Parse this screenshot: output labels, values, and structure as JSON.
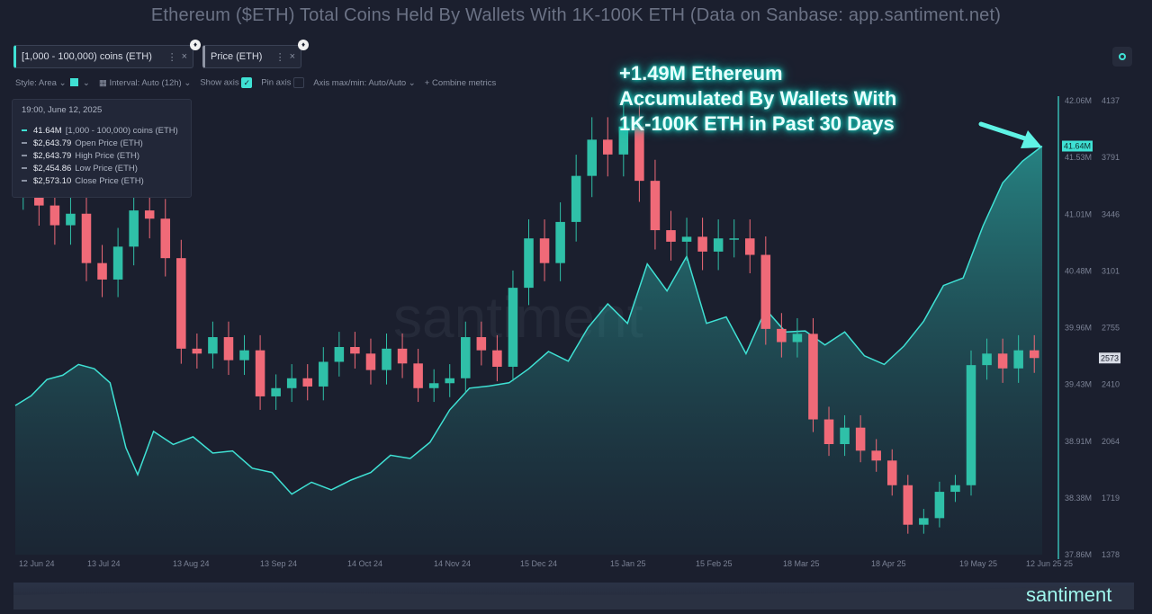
{
  "title": "Ethereum ($ETH) Total Coins Held By Wallets With 1K-100K ETH (Data on Sanbase: app.santiment.net)",
  "tabs": [
    {
      "label": "[1,000 - 100,000) coins (ETH)",
      "menu_icon": "more-dots-icon",
      "close_icon": "close-icon"
    },
    {
      "label": "Price (ETH)",
      "menu_icon": "more-dots-icon",
      "close_icon": "close-icon"
    }
  ],
  "settings": {
    "style": "Style: Area",
    "interval": "Interval: Auto (12h)",
    "show_axis": "Show axis",
    "pin_axis": "Pin axis",
    "axis_maxmin": "Axis max/min: Auto/Auto",
    "combine": "Combine metrics"
  },
  "tooltip": {
    "date": "19:00, June 12, 2025",
    "rows": [
      {
        "value": "41.64M",
        "label": "[1,000 - 100,000) coins (ETH)"
      },
      {
        "value": "$2,643.79",
        "label": "Open Price (ETH)"
      },
      {
        "value": "$2,643.79",
        "label": "High Price (ETH)"
      },
      {
        "value": "$2,454.86",
        "label": "Low Price (ETH)"
      },
      {
        "value": "$2,573.10",
        "label": "Close Price (ETH)"
      }
    ]
  },
  "annotation": [
    "+1.49M Ethereum",
    "Accumulated By Wallets With",
    "1K-100K ETH in Past 30 Days"
  ],
  "watermark": "santiment",
  "colors": {
    "holdings": "#3fe1d4",
    "up": "#2fc0a8",
    "down": "#f06a78",
    "background": "#1b1f2e"
  },
  "chart_data": {
    "type": "area",
    "x_labels": [
      "12 Jun 24",
      "13 Jul 24",
      "13 Aug 24",
      "13 Sep 24",
      "14 Oct 24",
      "14 Nov 24",
      "15 Dec 24",
      "15 Jan 25",
      "15 Feb 25",
      "18 Mar 25",
      "18 Apr 25",
      "19 May 25",
      "12 Jun 25",
      "25"
    ],
    "holdings_axis_ticks": [
      "42.06M",
      "41.53M",
      "41.01M",
      "40.48M",
      "39.96M",
      "39.43M",
      "38.91M",
      "38.38M",
      "37.86M"
    ],
    "price_axis_ticks": [
      "4137",
      "3791",
      "3446",
      "3101",
      "2755",
      "2410",
      "2064",
      "1719",
      "1378"
    ],
    "holdings_last_label": "41.64M",
    "price_last_label": "2573",
    "series": [
      {
        "name": "[1,000 - 100,000) coins (ETH)",
        "style": "area",
        "unit": "ETH (millions)",
        "points": [
          [
            0,
            39.24
          ],
          [
            8,
            39.33
          ],
          [
            16,
            39.48
          ],
          [
            24,
            39.52
          ],
          [
            32,
            39.62
          ],
          [
            40,
            39.58
          ],
          [
            48,
            39.45
          ],
          [
            56,
            38.85
          ],
          [
            62,
            38.6
          ],
          [
            70,
            39.0
          ],
          [
            80,
            38.88
          ],
          [
            90,
            38.95
          ],
          [
            100,
            38.8
          ],
          [
            110,
            38.82
          ],
          [
            120,
            38.66
          ],
          [
            130,
            38.62
          ],
          [
            140,
            38.42
          ],
          [
            150,
            38.53
          ],
          [
            160,
            38.46
          ],
          [
            170,
            38.55
          ],
          [
            180,
            38.62
          ],
          [
            190,
            38.78
          ],
          [
            200,
            38.75
          ],
          [
            210,
            38.9
          ],
          [
            220,
            39.2
          ],
          [
            230,
            39.4
          ],
          [
            240,
            39.42
          ],
          [
            250,
            39.45
          ],
          [
            260,
            39.58
          ],
          [
            270,
            39.74
          ],
          [
            280,
            39.65
          ],
          [
            290,
            39.96
          ],
          [
            300,
            40.18
          ],
          [
            310,
            40.0
          ],
          [
            320,
            40.55
          ],
          [
            330,
            40.3
          ],
          [
            340,
            40.62
          ],
          [
            350,
            40.0
          ],
          [
            360,
            40.06
          ],
          [
            370,
            39.72
          ],
          [
            380,
            40.13
          ],
          [
            390,
            39.92
          ],
          [
            400,
            39.93
          ],
          [
            410,
            39.8
          ],
          [
            420,
            39.92
          ],
          [
            430,
            39.7
          ],
          [
            440,
            39.62
          ],
          [
            450,
            39.79
          ],
          [
            460,
            40.02
          ],
          [
            470,
            40.35
          ],
          [
            480,
            40.42
          ],
          [
            490,
            40.9
          ],
          [
            500,
            41.3
          ],
          [
            510,
            41.5
          ],
          [
            520,
            41.64
          ]
        ]
      },
      {
        "name": "Price (ETH)",
        "style": "candles",
        "unit": "USD",
        "closes": [
          3600,
          3500,
          3380,
          3450,
          3150,
          3050,
          3250,
          3470,
          3420,
          3180,
          2630,
          2600,
          2700,
          2560,
          2620,
          2340,
          2390,
          2450,
          2400,
          2550,
          2640,
          2600,
          2500,
          2630,
          2540,
          2390,
          2420,
          2450,
          2700,
          2620,
          2520,
          3000,
          3300,
          3150,
          3400,
          3680,
          3900,
          3810,
          3980,
          3650,
          3350,
          3280,
          3310,
          3220,
          3300,
          3300,
          3200,
          2750,
          2670,
          2720,
          2200,
          2050,
          2150,
          2010,
          1950,
          1800,
          1560,
          1600,
          1760,
          1800,
          2530,
          2600,
          2510,
          2620,
          2573
        ]
      }
    ],
    "holdings_range": [
      37.86,
      42.06
    ],
    "price_range": [
      1378,
      4137
    ]
  }
}
